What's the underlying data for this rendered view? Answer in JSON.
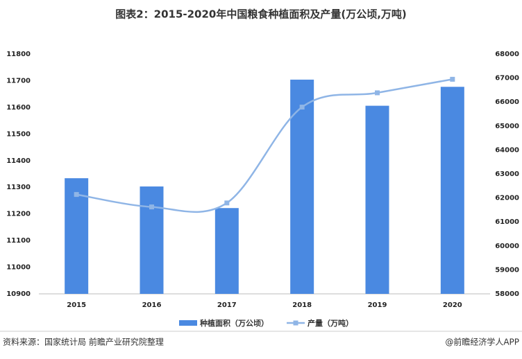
{
  "chart_data": {
    "type": "bar-line",
    "title": "图表2：2015-2020年中国粮食种植面积及产量(万公顷,万吨)",
    "categories": [
      "2015",
      "2016",
      "2017",
      "2018",
      "2019",
      "2020"
    ],
    "series": [
      {
        "name": "种植面积（万公顷）",
        "color": "#4a89e1",
        "type": "bar",
        "values": [
          11334,
          11303,
          11222,
          11704,
          11606,
          11677
        ]
      },
      {
        "name": "产量（万吨）",
        "color": "#8fb5e6",
        "type": "line",
        "axis": "y2",
        "values": [
          62144,
          61625,
          61791,
          65789,
          66384,
          66949
        ]
      }
    ],
    "ylim": [
      10900,
      11800
    ],
    "yticks": [
      10900,
      11000,
      11100,
      11200,
      11300,
      11400,
      11500,
      11600,
      11700,
      11800
    ],
    "y2lim": [
      58000,
      68000
    ],
    "y2ticks": [
      58000,
      59000,
      60000,
      61000,
      62000,
      63000,
      64000,
      65000,
      66000,
      67000,
      68000
    ],
    "source": "资料来源：国家统计局 前瞻产业研究院整理",
    "credit": "@前瞻经济学人APP"
  }
}
